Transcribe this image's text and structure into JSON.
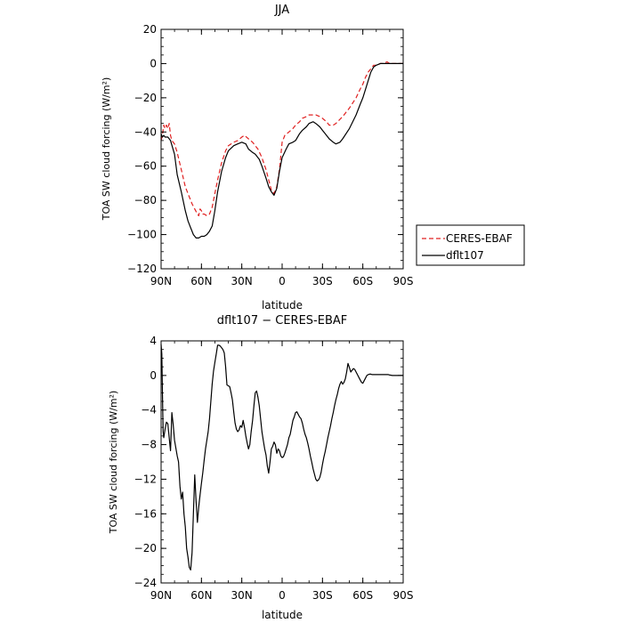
{
  "chart_data": [
    {
      "type": "line",
      "title": "JJA",
      "xlabel": "latitude",
      "ylabel": "TOA SW cloud forcing (W/m²)",
      "xlim": [
        90,
        -90
      ],
      "ylim": [
        -120,
        20
      ],
      "xticks": [
        90,
        60,
        30,
        0,
        -30,
        -60,
        -90
      ],
      "xtick_labels": [
        "90N",
        "60N",
        "30N",
        "0",
        "30S",
        "60S",
        "90S"
      ],
      "yticks": [
        20,
        0,
        -20,
        -40,
        -60,
        -80,
        -100,
        -120
      ],
      "ytick_labels": [
        "20",
        "0",
        "−20",
        "−40",
        "−60",
        "−80",
        "−100",
        "−120"
      ],
      "legend_position": "right",
      "series": [
        {
          "name": "CERES-EBAF",
          "color": "#e02020",
          "dash": "dashed",
          "x": [
            90,
            89,
            88,
            87,
            86,
            85,
            84,
            83,
            82,
            80,
            78,
            75,
            72,
            70,
            67,
            65,
            63,
            62,
            61,
            60,
            59,
            58,
            56,
            54,
            52,
            50,
            48,
            45,
            42,
            40,
            36,
            33,
            30,
            28,
            25,
            22,
            20,
            18,
            15,
            12,
            10,
            8,
            6,
            4,
            2,
            0,
            -2,
            -5,
            -8,
            -10,
            -13,
            -15,
            -18,
            -20,
            -23,
            -25,
            -28,
            -30,
            -33,
            -35,
            -38,
            -40,
            -45,
            -50,
            -55,
            -58,
            -60,
            -62,
            -64,
            -66,
            -68,
            -70,
            -73,
            -75,
            -78,
            -80,
            -85,
            -90
          ],
          "y": [
            -45,
            -42,
            -36,
            -38,
            -36,
            -38,
            -35,
            -42,
            -45,
            -47,
            -52,
            -62,
            -72,
            -76,
            -82,
            -85,
            -88,
            -89,
            -85,
            -86,
            -88,
            -88,
            -89,
            -88,
            -84,
            -76,
            -68,
            -58,
            -51,
            -48,
            -46,
            -45,
            -43,
            -42,
            -44,
            -46,
            -48,
            -50,
            -55,
            -62,
            -68,
            -74,
            -76,
            -72,
            -62,
            -46,
            -42,
            -40,
            -38,
            -36,
            -34,
            -32,
            -31,
            -30,
            -30,
            -30,
            -31,
            -32,
            -34,
            -36,
            -36,
            -35,
            -31,
            -26,
            -20,
            -15,
            -12,
            -8,
            -5,
            -3,
            -1,
            -1,
            0,
            0,
            1,
            0,
            0,
            0
          ]
        },
        {
          "name": "dflt107",
          "color": "#000000",
          "dash": "solid",
          "x": [
            90,
            89,
            88,
            87,
            86,
            85,
            83,
            80,
            78,
            75,
            72,
            70,
            68,
            66,
            64,
            63,
            62,
            60,
            58,
            56,
            54,
            52,
            50,
            48,
            45,
            42,
            40,
            36,
            33,
            30,
            27,
            25,
            22,
            20,
            17,
            15,
            12,
            10,
            8,
            6,
            4,
            2,
            0,
            -3,
            -5,
            -8,
            -10,
            -13,
            -15,
            -18,
            -20,
            -23,
            -25,
            -28,
            -30,
            -33,
            -35,
            -38,
            -40,
            -43,
            -45,
            -50,
            -55,
            -58,
            -60,
            -62,
            -64,
            -66,
            -68,
            -70,
            -73,
            -75,
            -80,
            -85,
            -90
          ],
          "y": [
            -41,
            -43,
            -42,
            -43,
            -43,
            -43,
            -45,
            -53,
            -65,
            -75,
            -86,
            -92,
            -96,
            -100,
            -102,
            -102,
            -102,
            -101,
            -101,
            -100,
            -98,
            -95,
            -86,
            -75,
            -63,
            -55,
            -51,
            -48,
            -47,
            -46,
            -47,
            -50,
            -52,
            -53,
            -56,
            -60,
            -67,
            -72,
            -75,
            -77,
            -73,
            -63,
            -55,
            -50,
            -47,
            -46,
            -45,
            -41,
            -39,
            -37,
            -35,
            -34,
            -35,
            -37,
            -39,
            -42,
            -44,
            -46,
            -47,
            -46,
            -44,
            -38,
            -30,
            -24,
            -20,
            -15,
            -10,
            -5,
            -2,
            -1,
            0,
            0,
            0,
            0,
            0
          ]
        }
      ]
    },
    {
      "type": "line",
      "title": "dflt107 − CERES-EBAF",
      "xlabel": "latitude",
      "ylabel": "TOA SW cloud forcing (W/m²)",
      "xlim": [
        90,
        -90
      ],
      "ylim": [
        -24,
        4
      ],
      "xticks": [
        90,
        60,
        30,
        0,
        -30,
        -60,
        -90
      ],
      "xtick_labels": [
        "90N",
        "60N",
        "30N",
        "0",
        "30S",
        "60S",
        "90S"
      ],
      "yticks": [
        4,
        0,
        -4,
        -8,
        -12,
        -16,
        -20,
        -24
      ],
      "ytick_labels": [
        "4",
        "0",
        "−4",
        "−8",
        "−12",
        "−16",
        "−20",
        "−24"
      ],
      "series": [
        {
          "color": "#000000",
          "dash": "solid",
          "x": [
            90,
            89.5,
            89,
            88.5,
            88,
            87,
            86,
            85,
            84,
            83,
            82,
            81,
            80,
            79,
            78,
            77,
            76,
            75,
            74,
            73,
            72,
            71,
            70,
            69,
            68,
            67,
            66,
            65,
            64,
            63,
            62,
            61,
            60,
            59,
            58,
            57,
            56,
            55,
            54,
            53,
            52,
            51,
            50,
            49,
            48,
            47,
            46,
            45,
            44,
            43,
            42,
            41,
            40,
            39,
            38,
            37,
            36,
            35,
            34,
            33,
            32,
            31,
            30,
            29,
            28,
            27,
            26,
            25,
            24,
            23,
            22,
            21,
            20,
            19,
            18,
            17,
            16,
            15,
            14,
            13,
            12,
            11,
            10,
            9,
            8,
            7,
            6,
            5,
            4,
            3,
            2,
            1,
            0,
            -1,
            -2,
            -3,
            -4,
            -5,
            -6,
            -7,
            -8,
            -9,
            -10,
            -11,
            -12,
            -13,
            -14,
            -15,
            -16,
            -17,
            -18,
            -19,
            -20,
            -21,
            -22,
            -23,
            -24,
            -25,
            -26,
            -27,
            -28,
            -29,
            -30,
            -31,
            -32,
            -33,
            -34,
            -35,
            -36,
            -37,
            -38,
            -39,
            -40,
            -41,
            -42,
            -43,
            -44,
            -45,
            -46,
            -47,
            -48,
            -49,
            -50,
            -51,
            -52,
            -53,
            -54,
            -55,
            -56,
            -57,
            -58,
            -59,
            -60,
            -61,
            -62,
            -63,
            -64,
            -65,
            -66,
            -67,
            -68,
            -69,
            -70,
            -71,
            -72,
            -73,
            -74,
            -75,
            -76,
            -77,
            -78,
            -79,
            -80,
            -82,
            -84,
            -86,
            -88,
            -90
          ],
          "y": [
            3.6,
            2.5,
            -2.0,
            -6.5,
            -7.2,
            -6.2,
            -5.4,
            -5.6,
            -7.2,
            -8.7,
            -4.3,
            -5.7,
            -7.5,
            -8.4,
            -9.3,
            -10.0,
            -12.8,
            -14.3,
            -13.5,
            -16.0,
            -17.5,
            -20.0,
            -21.0,
            -22.2,
            -22.5,
            -20.5,
            -16.0,
            -11.5,
            -14.5,
            -17.0,
            -15.2,
            -13.8,
            -12.5,
            -11.3,
            -9.8,
            -8.5,
            -7.5,
            -6.5,
            -5.0,
            -3.0,
            -1.0,
            0.5,
            1.5,
            2.5,
            3.5,
            3.5,
            3.4,
            3.2,
            3.0,
            2.6,
            1.0,
            -1.1,
            -1.2,
            -1.3,
            -2.0,
            -2.8,
            -4.2,
            -5.5,
            -6.2,
            -6.5,
            -6.3,
            -5.8,
            -6.0,
            -5.2,
            -6.0,
            -7.0,
            -7.8,
            -8.5,
            -8.0,
            -6.5,
            -5.2,
            -3.5,
            -2.0,
            -1.8,
            -2.5,
            -3.5,
            -5.0,
            -6.5,
            -7.5,
            -8.5,
            -9.2,
            -10.5,
            -11.3,
            -10.0,
            -8.5,
            -8.2,
            -7.7,
            -8.0,
            -9.0,
            -8.5,
            -8.7,
            -9.3,
            -9.5,
            -9.4,
            -9.0,
            -8.5,
            -8.0,
            -7.2,
            -6.8,
            -6.0,
            -5.2,
            -4.8,
            -4.3,
            -4.2,
            -4.5,
            -4.8,
            -5.0,
            -5.5,
            -6.2,
            -6.8,
            -7.2,
            -7.8,
            -8.5,
            -9.3,
            -10.0,
            -10.8,
            -11.4,
            -12.0,
            -12.2,
            -12.1,
            -11.8,
            -11.2,
            -10.3,
            -9.5,
            -8.8,
            -8.0,
            -7.2,
            -6.5,
            -5.8,
            -5.0,
            -4.3,
            -3.5,
            -2.8,
            -2.2,
            -1.5,
            -1.0,
            -0.7,
            -1.0,
            -0.8,
            -0.4,
            0.4,
            1.4,
            0.9,
            0.4,
            0.6,
            0.8,
            0.7,
            0.4,
            0.1,
            -0.2,
            -0.5,
            -0.8,
            -0.9,
            -0.6,
            -0.3,
            0.0,
            0.1,
            0.15,
            0.15,
            0.1,
            0.1,
            0.1,
            0.1,
            0.1,
            0.1,
            0.1,
            0.1,
            0.1,
            0.1,
            0.1,
            0.1,
            0.1,
            0.05,
            0.0,
            0.0,
            0.0,
            0.0,
            0.0
          ]
        }
      ]
    }
  ]
}
